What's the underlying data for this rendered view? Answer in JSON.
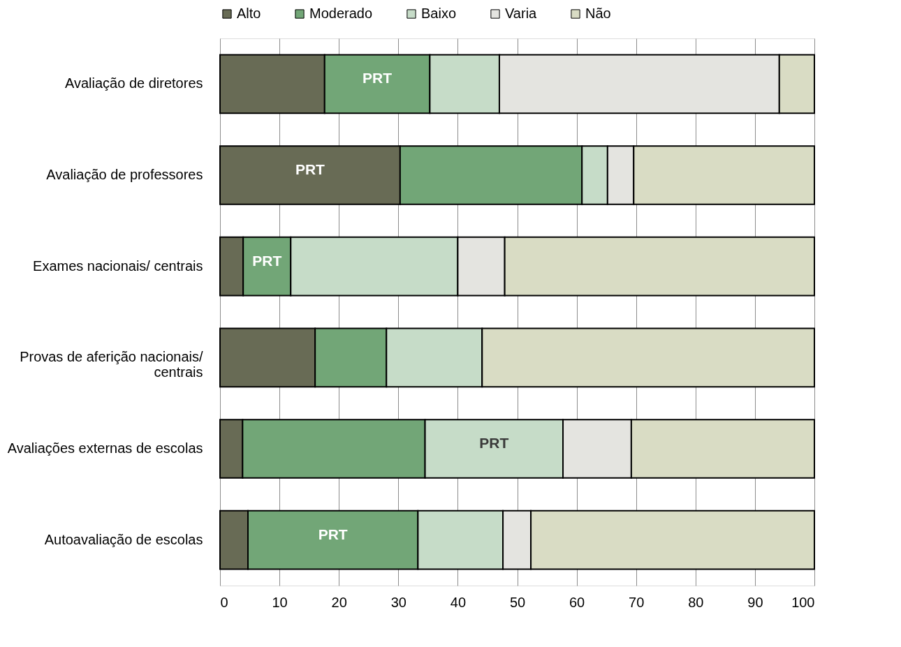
{
  "chart_data": {
    "type": "bar",
    "orientation": "horizontal",
    "stacked": true,
    "categories": [
      "Avaliação de diretores",
      "Avaliação de professores",
      "Exames nacionais/ centrais",
      "Provas de aferição nacionais/ centrais",
      "Avaliações externas de escolas",
      "Autoavaliação de escolas"
    ],
    "series": [
      {
        "name": "Alto",
        "color": "#686b55",
        "values": [
          17.6,
          30.3,
          3.9,
          16.0,
          3.8,
          4.7
        ],
        "value_labels": [
          null,
          "PRT",
          null,
          null,
          null,
          null
        ]
      },
      {
        "name": "Moderado",
        "color": "#72a677",
        "values": [
          17.7,
          30.6,
          8.0,
          12.0,
          30.7,
          28.6
        ],
        "value_labels": [
          "PRT",
          null,
          "PRT",
          null,
          null,
          "PRT"
        ]
      },
      {
        "name": "Baixo",
        "color": "#c6dcc8",
        "values": [
          11.7,
          4.3,
          28.1,
          16.1,
          23.2,
          14.3
        ],
        "value_labels": [
          null,
          null,
          null,
          null,
          "PRT",
          null
        ]
      },
      {
        "name": "Varia",
        "color": "#e4e4e0",
        "values": [
          47.1,
          4.4,
          7.9,
          0,
          11.5,
          4.7
        ]
      },
      {
        "name": "Não",
        "color": "#d9dcc4",
        "values": [
          5.9,
          30.4,
          52.1,
          55.9,
          30.8,
          47.7
        ]
      }
    ],
    "xlim": [
      0,
      100
    ],
    "xticks": [
      0,
      10,
      20,
      30,
      40,
      50,
      60,
      70,
      80,
      90,
      100
    ],
    "grid": "x",
    "legend": "top"
  }
}
